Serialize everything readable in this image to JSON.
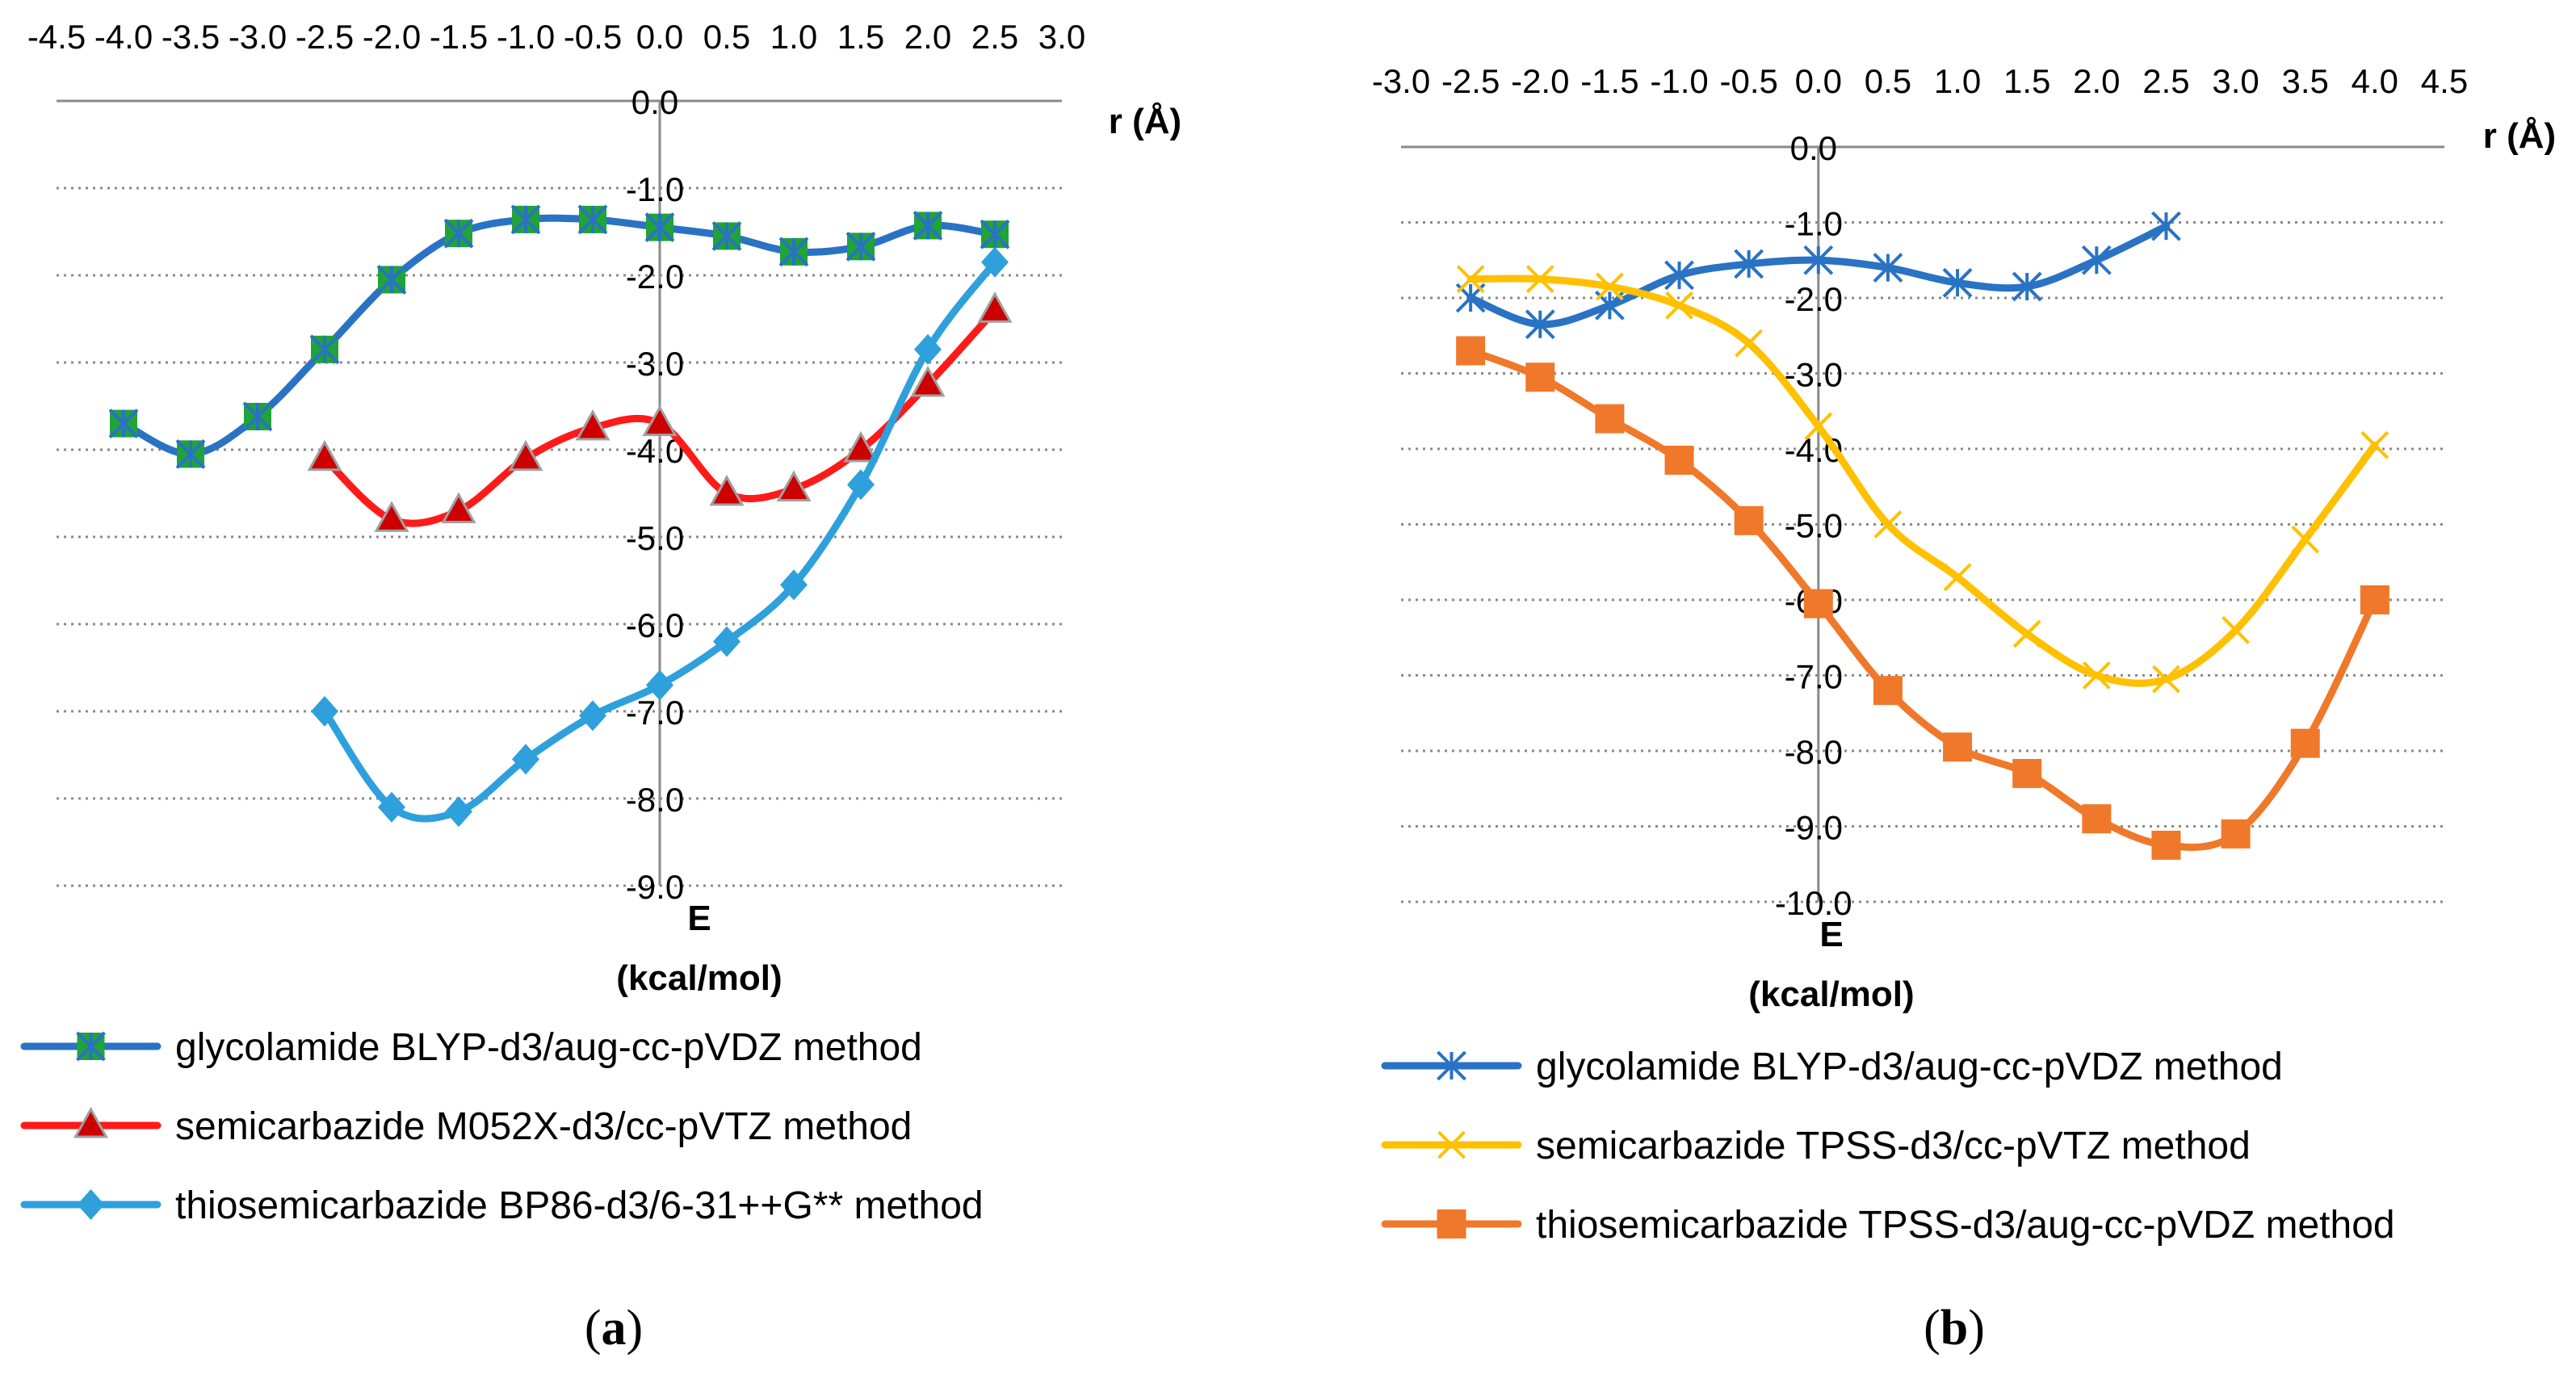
{
  "chart_data": [
    {
      "id": "a",
      "type": "line",
      "caption_letter": "a",
      "xlabel": "r (Å)",
      "ylabel_line1": "E",
      "ylabel_line2": "(kcal/mol)",
      "xlim": [
        -4.5,
        3.0
      ],
      "ylim": [
        -9.0,
        0.0
      ],
      "x_ticks": [
        "-4.5",
        "-4.0",
        "-3.5",
        "-3.0",
        "-2.5",
        "-2.0",
        "-1.5",
        "-1.0",
        "-0.5",
        "0.0",
        "0.5",
        "1.0",
        "1.5",
        "2.0",
        "2.5",
        "3.0"
      ],
      "y_ticks": [
        "0.0",
        "-1.0",
        "-2.0",
        "-3.0",
        "-4.0",
        "-5.0",
        "-6.0",
        "-7.0",
        "-8.0",
        "-9.0"
      ],
      "grid": "horizontal-dotted",
      "legend_position": "bottom",
      "series": [
        {
          "name": "glycolamide BLYP-d3/aug-cc-pVDZ method",
          "color": "#2a72c4",
          "marker": "square-asterisk",
          "marker_color": "#1fa33a",
          "x": [
            -4.0,
            -3.5,
            -3.0,
            -2.5,
            -2.0,
            -1.5,
            -1.0,
            -0.5,
            0.0,
            0.5,
            1.0,
            1.5,
            2.0,
            2.5
          ],
          "y": [
            -3.7,
            -4.05,
            -3.62,
            -2.85,
            -2.05,
            -1.52,
            -1.36,
            -1.36,
            -1.45,
            -1.55,
            -1.73,
            -1.67,
            -1.43,
            -1.53
          ]
        },
        {
          "name": "semicarbazide M052X-d3/cc-pVTZ method",
          "color": "#ff1a1a",
          "marker": "triangle",
          "marker_color": "#cc0000",
          "x": [
            -2.5,
            -2.0,
            -1.5,
            -1.0,
            -0.5,
            0.0,
            0.5,
            1.0,
            1.5,
            2.0,
            2.5
          ],
          "y": [
            -4.1,
            -4.8,
            -4.7,
            -4.1,
            -3.75,
            -3.7,
            -4.5,
            -4.45,
            -4.0,
            -3.25,
            -2.4
          ]
        },
        {
          "name": "thiosemicarbazide BP86-d3/6-31++G** method",
          "color": "#2ea0dc",
          "marker": "diamond",
          "marker_color": "#2ea0dc",
          "x": [
            -2.5,
            -2.0,
            -1.5,
            -1.0,
            -0.5,
            0.0,
            0.5,
            1.0,
            1.5,
            2.0,
            2.5
          ],
          "y": [
            -7.0,
            -8.1,
            -8.15,
            -7.55,
            -7.05,
            -6.7,
            -6.2,
            -5.55,
            -4.4,
            -2.85,
            -1.85
          ]
        }
      ]
    },
    {
      "id": "b",
      "type": "line",
      "caption_letter": "b",
      "xlabel": "r (Å)",
      "ylabel_line1": "E",
      "ylabel_line2": "(kcal/mol)",
      "xlim": [
        -3.0,
        4.5
      ],
      "ylim": [
        -10.0,
        0.0
      ],
      "x_ticks": [
        "-3.0",
        "-2.5",
        "-2.0",
        "-1.5",
        "-1.0",
        "-0.5",
        "0.0",
        "0.5",
        "1.0",
        "1.5",
        "2.0",
        "2.5",
        "3.0",
        "3.5",
        "4.0",
        "4.5"
      ],
      "y_ticks": [
        "0.0",
        "-1.0",
        "-2.0",
        "-3.0",
        "-4.0",
        "-5.0",
        "-6.0",
        "-7.0",
        "-8.0",
        "-9.0",
        "-10.0"
      ],
      "grid": "horizontal-dotted",
      "legend_position": "bottom",
      "series": [
        {
          "name": "glycolamide BLYP-d3/aug-cc-pVDZ method",
          "color": "#2a72c4",
          "marker": "asterisk",
          "marker_color": "#2a72c4",
          "x": [
            -2.5,
            -2.0,
            -1.5,
            -1.0,
            -0.5,
            0.0,
            0.5,
            1.0,
            1.5,
            2.0,
            2.5
          ],
          "y": [
            -2.0,
            -2.35,
            -2.1,
            -1.7,
            -1.55,
            -1.5,
            -1.6,
            -1.8,
            -1.85,
            -1.5,
            -1.05
          ]
        },
        {
          "name": "semicarbazide TPSS-d3/cc-pVTZ method",
          "color": "#ffc000",
          "marker": "x",
          "marker_color": "#ffc000",
          "x": [
            -2.5,
            -2.0,
            -1.5,
            -1.0,
            -0.5,
            0.0,
            0.5,
            1.0,
            1.5,
            2.0,
            2.5,
            3.0,
            3.5,
            4.0
          ],
          "y": [
            -1.75,
            -1.75,
            -1.85,
            -2.1,
            -2.6,
            -3.7,
            -5.0,
            -5.7,
            -6.45,
            -7.0,
            -7.05,
            -6.4,
            -5.2,
            -3.95
          ]
        },
        {
          "name": "thiosemicarbazide TPSS-d3/aug-cc-pVDZ method",
          "color": "#f0782a",
          "marker": "square",
          "marker_color": "#f0782a",
          "x": [
            -2.5,
            -2.0,
            -1.5,
            -1.0,
            -0.5,
            0.0,
            0.5,
            1.0,
            1.5,
            2.0,
            2.5,
            3.0,
            3.5,
            4.0
          ],
          "y": [
            -2.7,
            -3.05,
            -3.6,
            -4.15,
            -4.95,
            -6.05,
            -7.2,
            -7.95,
            -8.3,
            -8.9,
            -9.25,
            -9.1,
            -7.9,
            -6.0
          ]
        }
      ]
    }
  ]
}
